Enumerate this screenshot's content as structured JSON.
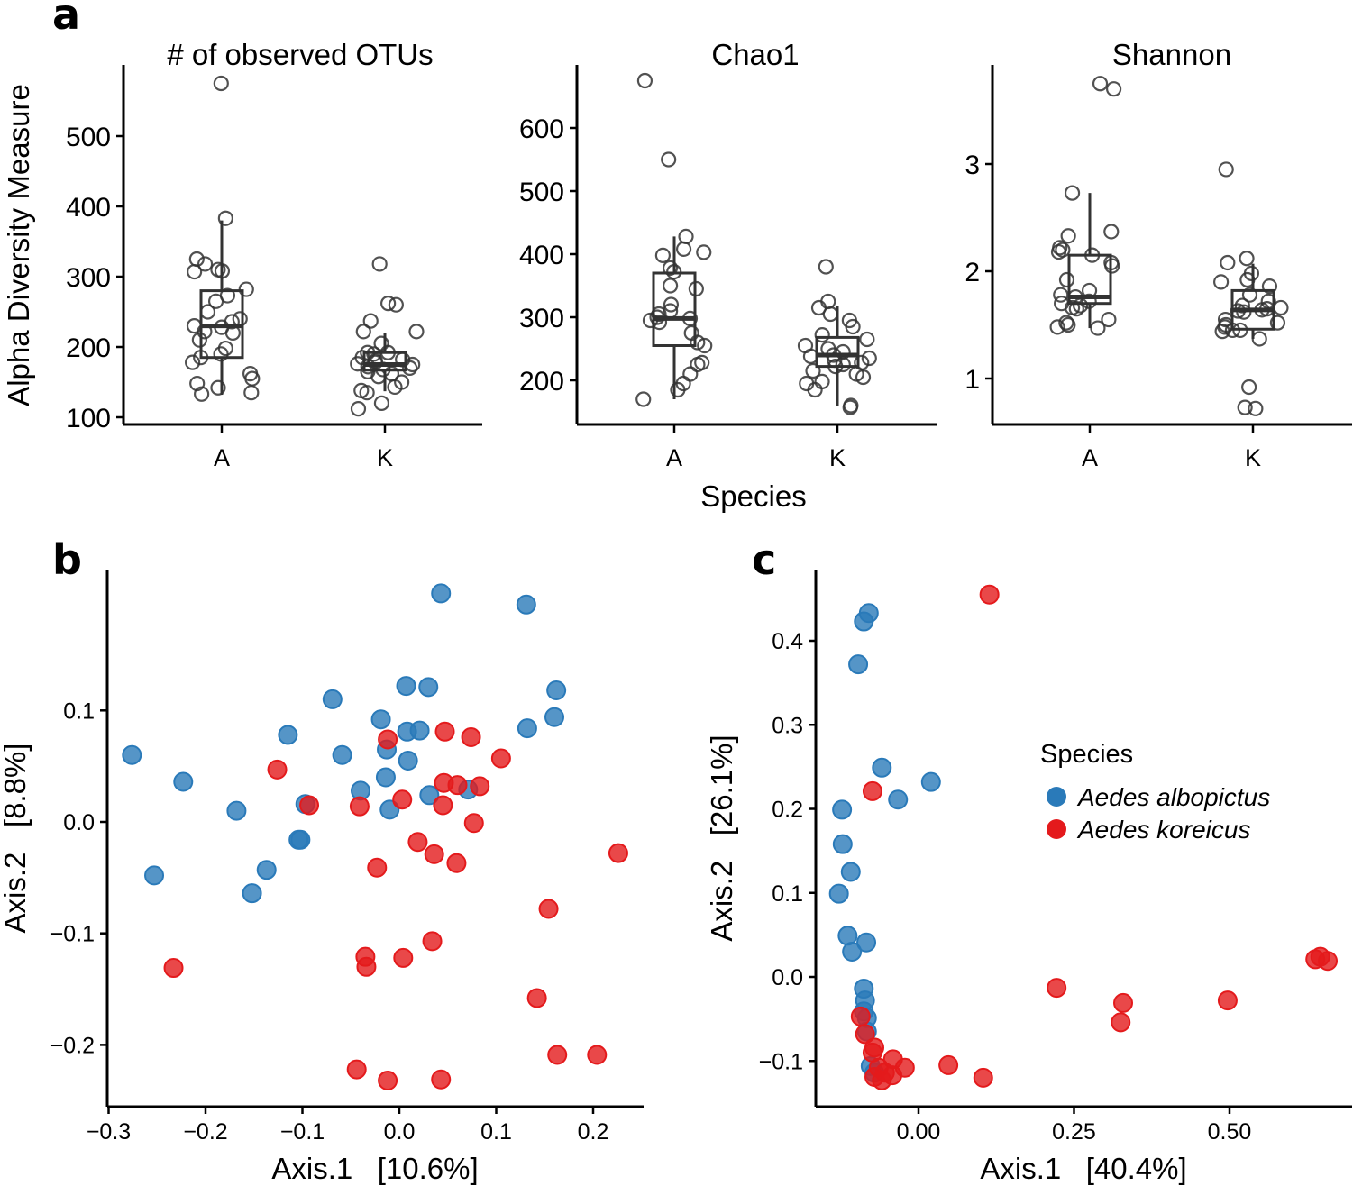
{
  "panel_labels": [
    "a",
    "b",
    "c"
  ],
  "panel_a": {
    "ylabel": "Alpha Diversity Measure",
    "xlabel": "Species"
  },
  "panel_b": {
    "xlabel": "Axis.1   [10.6%]",
    "ylabel": "Axis.2   [8.8%]"
  },
  "panel_c": {
    "xlabel": "Axis.1   [40.4%]",
    "ylabel": "Axis.2   [26.1%]"
  },
  "legend": {
    "title": "Species",
    "items": [
      {
        "label": "Aedes albopictus",
        "color": "#2a7ab9"
      },
      {
        "label": "Aedes koreicus",
        "color": "#e41a1c"
      }
    ]
  },
  "chart_data": [
    {
      "type": "box",
      "title": "# of observed OTUs",
      "categories": [
        "A",
        "K"
      ],
      "yticks": [
        100,
        200,
        300,
        400,
        500
      ],
      "boxes": [
        {
          "q1": 185,
          "median": 230,
          "q3": 280,
          "whisker_low": 132,
          "whisker_high": 380
        },
        {
          "q1": 167,
          "median": 175,
          "q3": 192,
          "whisker_low": 137,
          "whisker_high": 220
        }
      ],
      "points": [
        [
          575,
          383,
          325,
          318,
          310,
          308,
          307,
          282,
          273,
          265,
          250,
          240,
          236,
          230,
          228,
          222,
          220,
          210,
          198,
          190,
          185,
          178,
          162,
          155,
          148,
          142,
          135,
          133
        ],
        [
          318,
          262,
          260,
          237,
          222,
          222,
          205,
          192,
          192,
          190,
          185,
          182,
          180,
          178,
          176,
          175,
          172,
          170,
          168,
          165,
          162,
          158,
          150,
          143,
          138,
          135,
          120,
          112
        ]
      ]
    },
    {
      "type": "box",
      "title": "Chao1",
      "categories": [
        "A",
        "K"
      ],
      "yticks": [
        200,
        300,
        400,
        500,
        600
      ],
      "boxes": [
        {
          "q1": 255,
          "median": 298,
          "q3": 370,
          "whisker_low": 170,
          "whisker_high": 428
        },
        {
          "q1": 222,
          "median": 240,
          "q3": 268,
          "whisker_low": 160,
          "whisker_high": 318
        }
      ],
      "points": [
        [
          675,
          550,
          428,
          408,
          403,
          398,
          378,
          372,
          350,
          345,
          320,
          310,
          305,
          300,
          298,
          295,
          292,
          275,
          260,
          255,
          228,
          225,
          210,
          195,
          185,
          170
        ],
        [
          380,
          325,
          315,
          305,
          295,
          285,
          272,
          265,
          255,
          250,
          245,
          240,
          238,
          235,
          232,
          228,
          225,
          222,
          215,
          210,
          205,
          198,
          195,
          185,
          160,
          157
        ]
      ]
    },
    {
      "type": "box",
      "title": "Shannon",
      "categories": [
        "A",
        "K"
      ],
      "yticks": [
        1,
        2,
        3
      ],
      "boxes": [
        {
          "q1": 1.7,
          "median": 1.76,
          "q3": 2.15,
          "whisker_low": 1.47,
          "whisker_high": 2.73
        },
        {
          "q1": 1.46,
          "median": 1.64,
          "q3": 1.82,
          "whisker_low": 1.37,
          "whisker_high": 2.07
        }
      ],
      "points": [
        [
          3.75,
          3.7,
          2.73,
          2.37,
          2.33,
          2.22,
          2.2,
          2.18,
          2.15,
          2.08,
          2.05,
          1.92,
          1.82,
          1.78,
          1.76,
          1.72,
          1.7,
          1.68,
          1.66,
          1.65,
          1.55,
          1.52,
          1.5,
          1.48,
          1.47
        ],
        [
          2.95,
          2.12,
          2.08,
          1.98,
          1.92,
          1.9,
          1.86,
          1.78,
          1.72,
          1.68,
          1.66,
          1.65,
          1.64,
          1.63,
          1.62,
          1.55,
          1.52,
          1.5,
          1.48,
          1.45,
          1.45,
          1.44,
          1.37,
          0.92,
          0.73,
          0.72
        ]
      ]
    },
    {
      "type": "scatter",
      "xticks": [
        -0.3,
        -0.2,
        -0.1,
        0.0,
        0.1,
        0.2
      ],
      "xticklabels": [
        "−0.3",
        "−0.2",
        "−0.1",
        "0.0",
        "0.1",
        "0.2"
      ],
      "yticks": [
        -0.2,
        -0.1,
        0.0,
        0.1
      ],
      "yticklabels": [
        "−0.2",
        "−0.1",
        "0.0",
        "0.1"
      ],
      "series": [
        {
          "name": "Aedes albopictus",
          "points": [
            [
              0.043,
              0.205
            ],
            [
              0.131,
              0.195
            ],
            [
              0.007,
              0.122
            ],
            [
              0.03,
              0.121
            ],
            [
              0.162,
              0.118
            ],
            [
              -0.069,
              0.11
            ],
            [
              -0.115,
              0.078
            ],
            [
              -0.019,
              0.092
            ],
            [
              0.008,
              0.081
            ],
            [
              0.021,
              0.082
            ],
            [
              0.16,
              0.094
            ],
            [
              0.132,
              0.084
            ],
            [
              -0.276,
              0.06
            ],
            [
              -0.059,
              0.06
            ],
            [
              -0.013,
              0.065
            ],
            [
              0.009,
              0.055
            ],
            [
              -0.223,
              0.036
            ],
            [
              -0.014,
              0.04
            ],
            [
              -0.04,
              0.028
            ],
            [
              0.031,
              0.024
            ],
            [
              0.071,
              0.029
            ],
            [
              -0.097,
              0.016
            ],
            [
              -0.168,
              0.01
            ],
            [
              -0.01,
              0.011
            ],
            [
              -0.102,
              -0.016
            ],
            [
              -0.104,
              -0.016
            ],
            [
              -0.253,
              -0.048
            ],
            [
              -0.137,
              -0.043
            ],
            [
              -0.152,
              -0.064
            ]
          ]
        },
        {
          "name": "Aedes koreicus",
          "points": [
            [
              -0.012,
              0.074
            ],
            [
              0.047,
              0.081
            ],
            [
              0.074,
              0.076
            ],
            [
              0.105,
              0.057
            ],
            [
              -0.126,
              0.047
            ],
            [
              0.046,
              0.035
            ],
            [
              0.06,
              0.033
            ],
            [
              0.083,
              0.032
            ],
            [
              -0.093,
              0.015
            ],
            [
              -0.041,
              0.014
            ],
            [
              0.003,
              0.02
            ],
            [
              0.045,
              0.015
            ],
            [
              0.077,
              -0.001
            ],
            [
              0.019,
              -0.018
            ],
            [
              0.036,
              -0.029
            ],
            [
              0.059,
              -0.037
            ],
            [
              -0.023,
              -0.041
            ],
            [
              0.226,
              -0.028
            ],
            [
              0.154,
              -0.078
            ],
            [
              0.034,
              -0.107
            ],
            [
              -0.035,
              -0.121
            ],
            [
              -0.034,
              -0.13
            ],
            [
              0.004,
              -0.122
            ],
            [
              -0.233,
              -0.131
            ],
            [
              0.142,
              -0.158
            ],
            [
              0.163,
              -0.209
            ],
            [
              0.204,
              -0.209
            ],
            [
              -0.044,
              -0.222
            ],
            [
              -0.012,
              -0.232
            ],
            [
              0.043,
              -0.231
            ]
          ]
        }
      ]
    },
    {
      "type": "scatter",
      "xticks": [
        0.0,
        0.25,
        0.5
      ],
      "xticklabels": [
        "0.00",
        "0.25",
        "0.50"
      ],
      "yticks": [
        -0.1,
        0.0,
        0.1,
        0.2,
        0.3,
        0.4
      ],
      "yticklabels": [
        "−0.1",
        "0.0",
        "0.1",
        "0.2",
        "0.3",
        "0.4"
      ],
      "series": [
        {
          "name": "Aedes albopictus",
          "points": [
            [
              -0.08,
              0.433
            ],
            [
              -0.088,
              0.423
            ],
            [
              -0.097,
              0.372
            ],
            [
              -0.059,
              0.249
            ],
            [
              0.02,
              0.232
            ],
            [
              -0.033,
              0.211
            ],
            [
              -0.123,
              0.199
            ],
            [
              -0.122,
              0.158
            ],
            [
              -0.109,
              0.125
            ],
            [
              -0.128,
              0.099
            ],
            [
              -0.114,
              0.049
            ],
            [
              -0.084,
              0.041
            ],
            [
              -0.107,
              0.03
            ],
            [
              -0.088,
              -0.014
            ],
            [
              -0.086,
              -0.028
            ],
            [
              -0.088,
              -0.041
            ],
            [
              -0.083,
              -0.049
            ],
            [
              -0.083,
              -0.065
            ],
            [
              -0.077,
              -0.106
            ],
            [
              -0.071,
              -0.114
            ]
          ]
        },
        {
          "name": "Aedes koreicus",
          "points": [
            [
              0.114,
              0.455
            ],
            [
              -0.074,
              0.221
            ],
            [
              0.638,
              0.021
            ],
            [
              0.658,
              0.019
            ],
            [
              0.646,
              0.024
            ],
            [
              0.222,
              -0.013
            ],
            [
              0.329,
              -0.031
            ],
            [
              0.497,
              -0.028
            ],
            [
              0.325,
              -0.054
            ],
            [
              -0.093,
              -0.047
            ],
            [
              -0.086,
              -0.068
            ],
            [
              -0.071,
              -0.084
            ],
            [
              -0.074,
              -0.09
            ],
            [
              -0.041,
              -0.098
            ],
            [
              -0.064,
              -0.108
            ],
            [
              -0.054,
              -0.114
            ],
            [
              -0.022,
              -0.108
            ],
            [
              -0.042,
              -0.117
            ],
            [
              0.048,
              -0.105
            ],
            [
              0.104,
              -0.12
            ],
            [
              -0.059,
              -0.123
            ],
            [
              -0.071,
              -0.119
            ]
          ]
        }
      ]
    }
  ]
}
